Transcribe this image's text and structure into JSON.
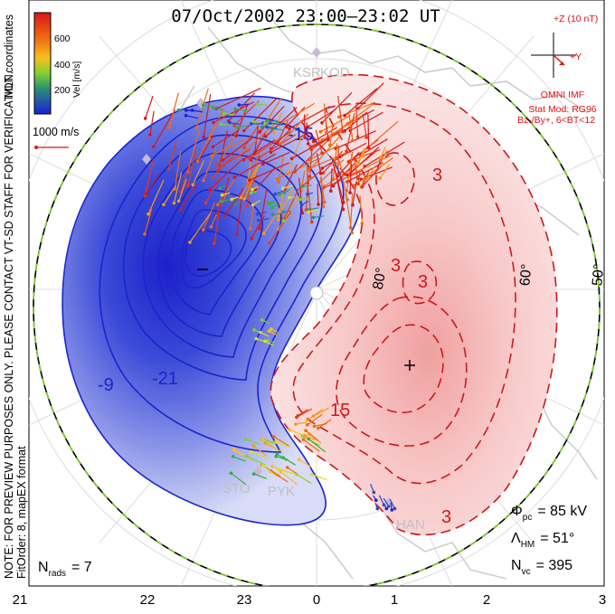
{
  "title": "07/Oct/2002 23:00–23:02 UT",
  "side_text": "NOTE: FOR PREVIEW PURPOSES ONLY. PLEASE CONTACT VT-SD STAFF FOR VERIFICATION.",
  "side_text_2": "FitOrder: 8, mapEX format",
  "mlt_label": "MLT coordinates",
  "colorbar": {
    "label": "Vel [m/s]",
    "ticks": [
      "600",
      "400",
      "200"
    ],
    "colors": [
      "#d81818",
      "#e83a14",
      "#f06a10",
      "#f89a18",
      "#f8c020",
      "#d8e020",
      "#80d030",
      "#30b040",
      "#2a8f90",
      "#2050c8",
      "#1a20d8"
    ]
  },
  "scale_vector": {
    "label": "1000 m/s",
    "color": "#d81818"
  },
  "imf": {
    "label_z": "+Z (10 nT)",
    "label_y": "+Y",
    "text_1": "OMNI IMF",
    "text_2": "Stat Mod: RG96",
    "text_3": "Bz-/By+, 6<BT<12",
    "color": "#e01010"
  },
  "stations": [
    "KSR",
    "KOD",
    "STO",
    "PYK",
    "HAN"
  ],
  "latitude_labels": [
    "60°",
    "50°",
    "80°"
  ],
  "contour_labels": {
    "negative": [
      "-9",
      "-21",
      "-15"
    ],
    "positive": [
      "3",
      "3",
      "3",
      "15",
      "3"
    ]
  },
  "stats": {
    "phi_pc_sym": "Φ",
    "phi_pc_sub": "pc",
    "phi_pc_value": "= 85 kV",
    "lambda_sym": "Λ",
    "lambda_sub": "HM",
    "lambda_value": "= 51°",
    "nvc_sym": "N",
    "nvc_sub": "vc",
    "nvc_value": "= 395",
    "nrads_sym": "N",
    "nrads_sub": "rads",
    "nrads_value": "= 7"
  },
  "mlt_axis": [
    "21",
    "22",
    "23",
    "0",
    "1",
    "2",
    "3"
  ],
  "colors": {
    "negative_potential": "#1a24d0",
    "positive_potential": "#d01818",
    "boundary_green": "#7ed321",
    "coast": "#c8c8c8",
    "grid": "#dcdcdc"
  }
}
